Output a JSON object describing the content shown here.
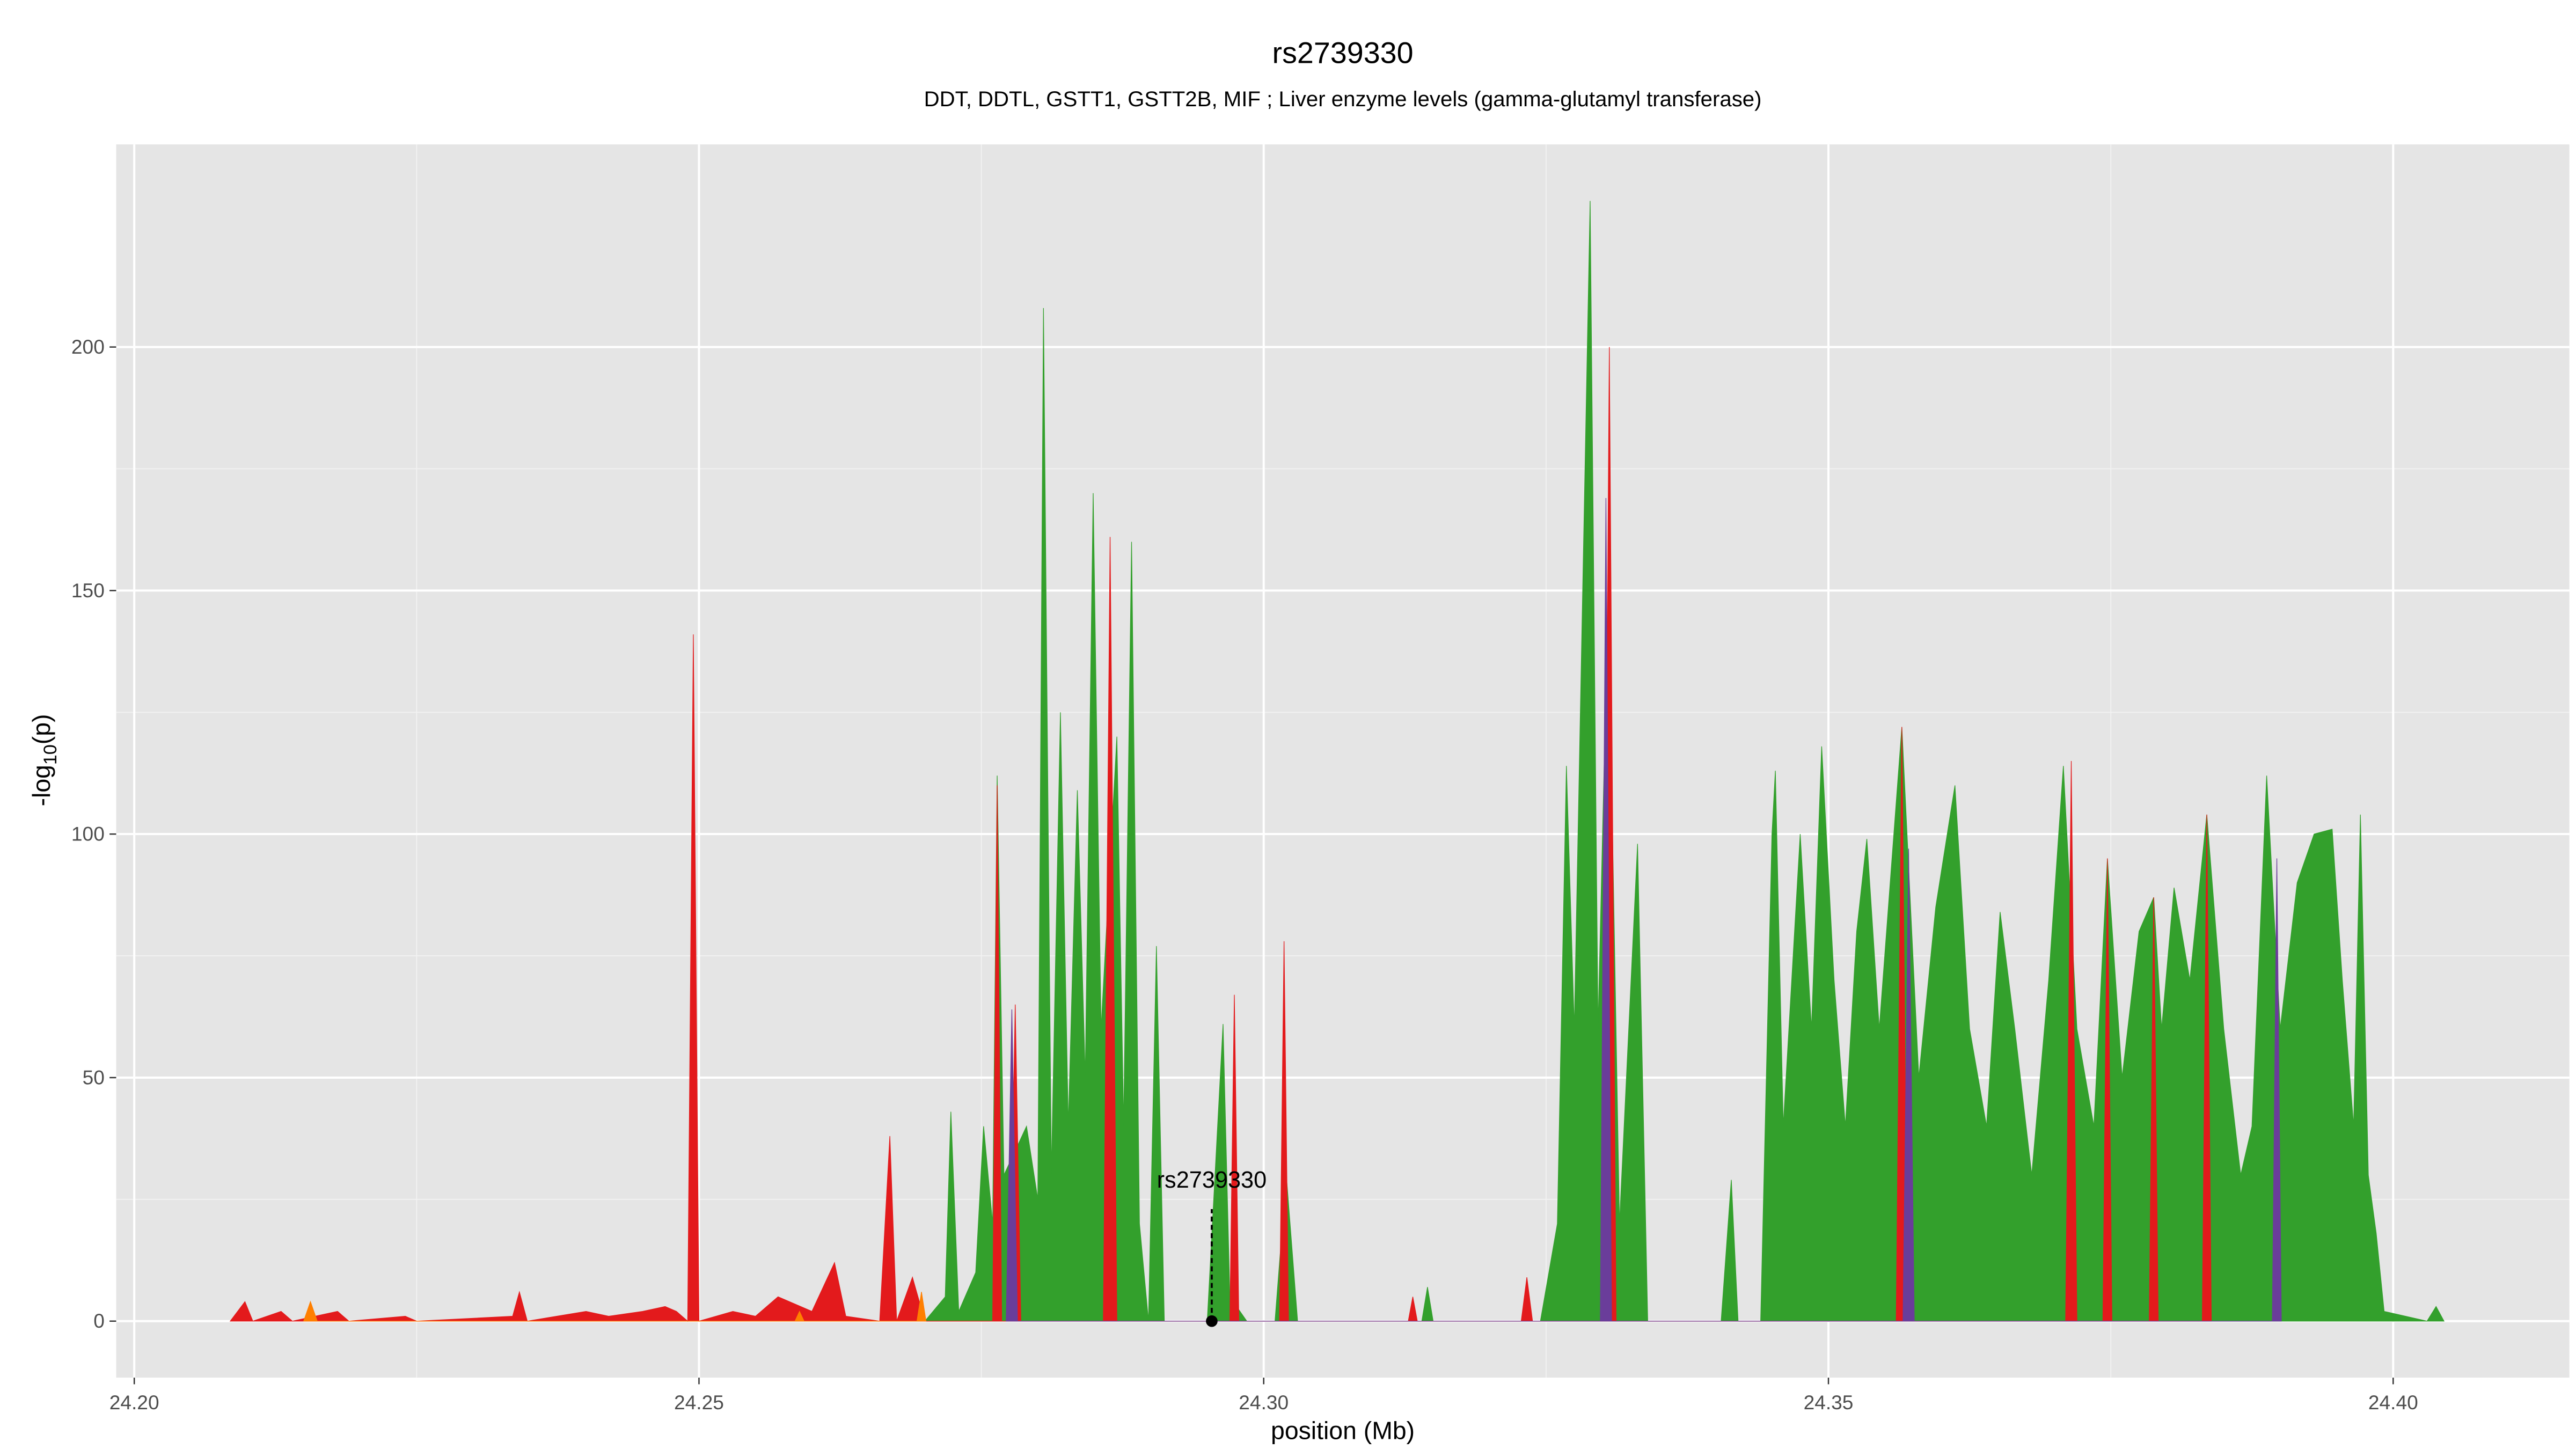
{
  "chart_data": {
    "type": "area",
    "title": "rs2739330",
    "subtitle": "DDT, DDTL, GSTT1, GSTT2B, MIF ; Liver enzyme levels (gamma-glutamyl transferase)",
    "xlabel": "position (Mb)",
    "ylabel": [
      "-log",
      "10",
      "(p)"
    ],
    "xlim": [
      24.1984,
      24.4156
    ],
    "ylim": [
      -11.6,
      241.6
    ],
    "xticks": [
      {
        "value": 24.2,
        "label": "24.20"
      },
      {
        "value": 24.25,
        "label": "24.25"
      },
      {
        "value": 24.3,
        "label": "24.30"
      },
      {
        "value": 24.35,
        "label": "24.35"
      },
      {
        "value": 24.4,
        "label": "24.40"
      }
    ],
    "yticks": [
      0,
      50,
      100,
      150,
      200
    ],
    "grid": true,
    "series": [
      {
        "color": "#33a02c",
        "x": [
          24.27,
          24.2718,
          24.2723,
          24.273,
          24.2745,
          24.2752,
          24.276,
          24.2764,
          24.277,
          24.279,
          24.28,
          24.2805,
          24.2812,
          24.282,
          24.2827,
          24.2835,
          24.2842,
          24.2849,
          24.2856,
          24.287,
          24.2876,
          24.2883,
          24.289,
          24.2898,
          24.2905,
          24.2912,
          24.295,
          24.2964,
          24.297,
          24.2985,
          24.301,
          24.302,
          24.303,
          24.314,
          24.3145,
          24.315,
          24.3245,
          24.326,
          24.3268,
          24.3275,
          24.3289,
          24.3296,
          24.3305,
          24.3315,
          24.3331,
          24.334,
          24.3405,
          24.3414,
          24.342,
          24.344,
          24.345,
          24.3453,
          24.346,
          24.3475,
          24.3485,
          24.3494,
          24.3505,
          24.3515,
          24.3525,
          24.3534,
          24.3545,
          24.3565,
          24.358,
          24.3595,
          24.3612,
          24.3625,
          24.364,
          24.3652,
          24.3665,
          24.368,
          24.3695,
          24.3708,
          24.372,
          24.3735,
          24.3747,
          24.376,
          24.3775,
          24.3788,
          24.3795,
          24.3806,
          24.382,
          24.3835,
          24.385,
          24.3865,
          24.3875,
          24.3888,
          24.39,
          24.3915,
          24.393,
          24.3946,
          24.3955,
          24.3965,
          24.3971,
          24.3978,
          24.3985,
          24.3992,
          24.403,
          24.4038,
          24.4045
        ],
        "values": [
          0,
          5,
          43,
          2,
          10,
          40,
          20,
          112,
          30,
          40,
          25,
          208,
          30,
          125,
          40,
          109,
          50,
          170,
          60,
          120,
          40,
          160,
          20,
          0,
          77,
          0,
          0,
          61,
          5,
          0,
          0,
          30,
          0,
          0,
          7,
          0,
          0,
          20,
          114,
          60,
          230,
          60,
          150,
          20,
          98,
          0,
          0,
          29,
          0,
          0,
          100,
          113,
          40,
          100,
          60,
          118,
          70,
          40,
          80,
          99,
          60,
          122,
          50,
          85,
          110,
          60,
          40,
          84,
          60,
          30,
          70,
          114,
          60,
          40,
          95,
          50,
          80,
          87,
          60,
          89,
          70,
          104,
          60,
          30,
          40,
          112,
          60,
          90,
          100,
          101,
          70,
          40,
          104,
          30,
          18,
          2,
          0,
          3,
          0
        ]
      },
      {
        "color": "#e31a1c",
        "x": [
          24.2085,
          24.2098,
          24.2105,
          24.213,
          24.214,
          24.218,
          24.219,
          24.224,
          24.225,
          24.2335,
          24.2341,
          24.2348,
          24.24,
          24.242,
          24.245,
          24.247,
          24.248,
          24.249,
          24.2495,
          24.25,
          24.253,
          24.255,
          24.257,
          24.26,
          24.262,
          24.263,
          24.266,
          24.2669,
          24.2675,
          24.2689,
          24.27,
          24.276,
          24.2764,
          24.2768,
          24.2775,
          24.278,
          24.2785,
          24.2858,
          24.2864,
          24.287,
          24.297,
          24.2974,
          24.2978,
          24.3014,
          24.3018,
          24.3022,
          24.3128,
          24.3132,
          24.3136,
          24.3228,
          24.3233,
          24.3238,
          24.33,
          24.3306,
          24.3312,
          24.356,
          24.3565,
          24.357,
          24.371,
          24.3715,
          24.372,
          24.3743,
          24.3747,
          24.3751,
          24.3784,
          24.3788,
          24.3792,
          24.3831,
          24.3835,
          24.3839
        ],
        "values": [
          0,
          4,
          0,
          2,
          0,
          2,
          0,
          1,
          0,
          1,
          6,
          0,
          2,
          1,
          2,
          3,
          2,
          0,
          141,
          0,
          2,
          1,
          5,
          2,
          12,
          1,
          0,
          38,
          0,
          9,
          0,
          0,
          110,
          0,
          0,
          65,
          0,
          0,
          161,
          0,
          0,
          67,
          0,
          0,
          78,
          0,
          0,
          5,
          0,
          0,
          9,
          0,
          0,
          200,
          0,
          0,
          122,
          0,
          0,
          115,
          0,
          0,
          95,
          0,
          0,
          87,
          0,
          0,
          104,
          0
        ]
      },
      {
        "color": "#6a3d9a",
        "x": [
          24.2772,
          24.2777,
          24.2782,
          24.3298,
          24.3303,
          24.3308,
          24.3566,
          24.3571,
          24.3576,
          24.3893,
          24.3897,
          24.3901
        ],
        "values": [
          0,
          64,
          0,
          0,
          169,
          0,
          0,
          97,
          0,
          0,
          95,
          0
        ]
      },
      {
        "color": "#ff7f00",
        "x": [
          24.215,
          24.2156,
          24.2162,
          24.2585,
          24.2589,
          24.2593,
          24.2693,
          24.2697,
          24.2701
        ],
        "values": [
          0,
          4,
          0,
          0,
          2,
          0,
          0,
          6,
          0
        ]
      }
    ],
    "annotation": {
      "text": "rs2739330",
      "x": 24.2954,
      "y": 0,
      "line_top": 23
    }
  }
}
